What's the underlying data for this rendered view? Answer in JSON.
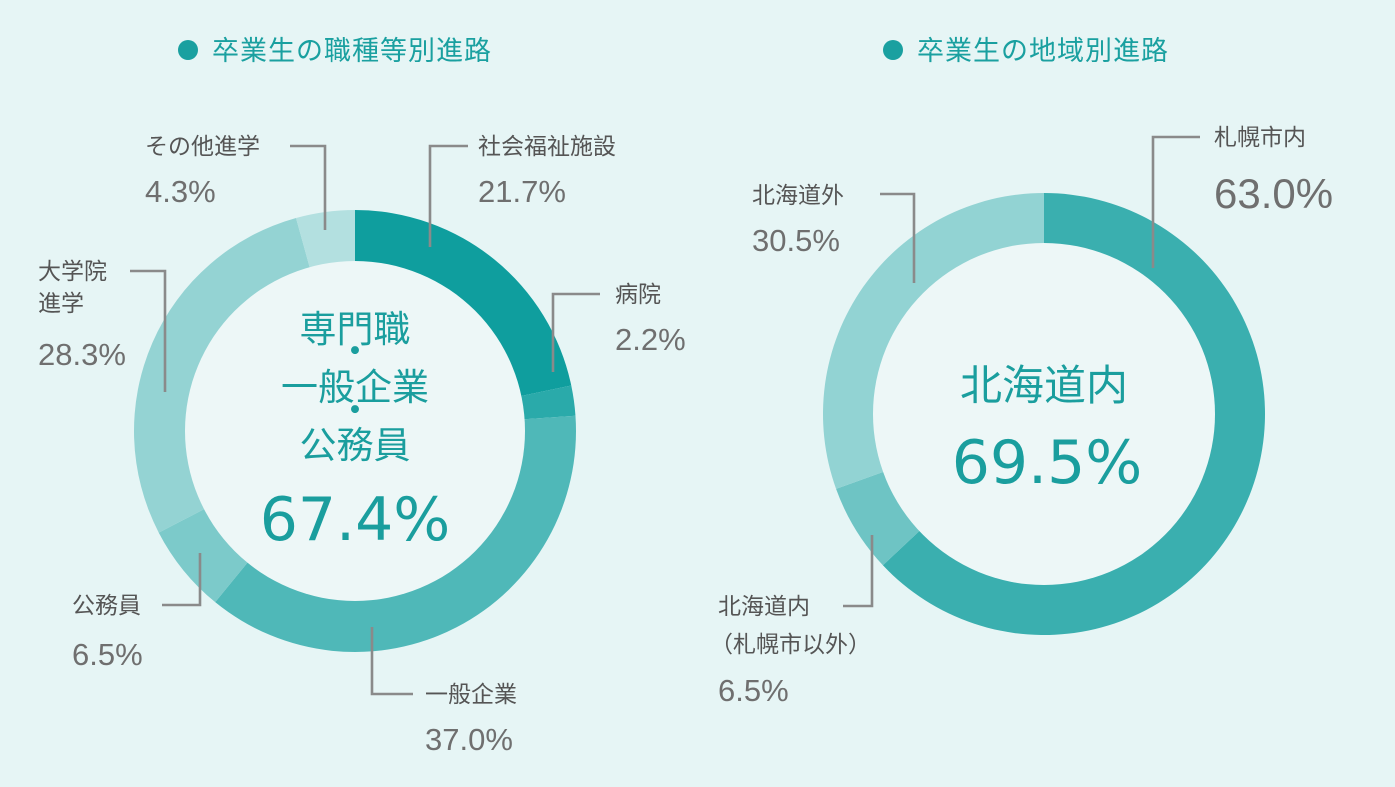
{
  "chart_data": [
    {
      "type": "donut",
      "title": "卒業生の職種等別進路",
      "center": {
        "lines": [
          "専門職",
          "・",
          "一般企業",
          "・",
          "公務員"
        ],
        "value": "67.4%"
      },
      "slices": [
        {
          "label": "社会福祉施設",
          "value": 21.7,
          "display": "21.7%",
          "color": "#0f9e9e"
        },
        {
          "label": "病院",
          "value": 2.2,
          "display": "2.2%",
          "color": "#2aaaaa"
        },
        {
          "label": "一般企業",
          "value": 37.0,
          "display": "37.0%",
          "color": "#4fb8b8"
        },
        {
          "label": "公務員",
          "value": 6.5,
          "display": "6.5%",
          "color": "#7ccaca"
        },
        {
          "label": "大学院進学",
          "label_lines": [
            "大学院",
            "進学"
          ],
          "value": 28.3,
          "display": "28.3%",
          "color": "#94d3d3"
        },
        {
          "label": "その他進学",
          "value": 4.3,
          "display": "4.3%",
          "color": "#b3e0e0"
        }
      ]
    },
    {
      "type": "donut",
      "title": "卒業生の地域別進路",
      "center": {
        "lines": [
          "北海道内"
        ],
        "value": "69.5%"
      },
      "slices": [
        {
          "label": "札幌市内",
          "value": 63.0,
          "display": "63.0%",
          "color": "#3aafaf"
        },
        {
          "label": "北海道内（札幌市以外）",
          "label_lines": [
            "北海道内",
            "（札幌市以外）"
          ],
          "value": 6.5,
          "display": "6.5%",
          "color": "#6ec4c4"
        },
        {
          "label": "北海道外",
          "value": 30.5,
          "display": "30.5%",
          "color": "#92d3d3"
        }
      ]
    }
  ]
}
